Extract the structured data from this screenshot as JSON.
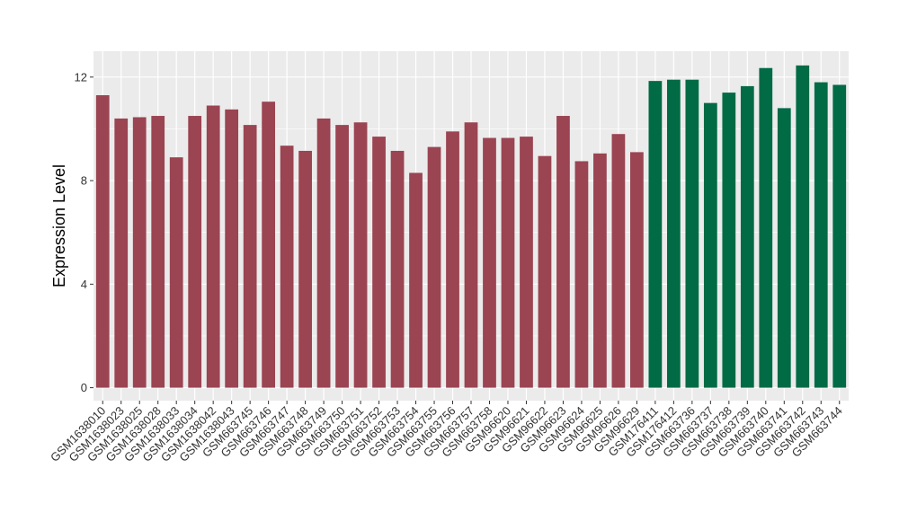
{
  "chart_data": {
    "type": "bar",
    "ylabel": "Expression Level",
    "xlabel": "",
    "title": "",
    "ylim": [
      -0.5,
      13.0
    ],
    "yticks": [
      0,
      4,
      8,
      12
    ],
    "grid": true,
    "legend": "none",
    "colors": {
      "group_a": "#9B4452",
      "group_b": "#006B45",
      "panel_bg": "#EBEBEB",
      "grid": "#FFFFFF"
    },
    "categories": [
      "GSM1638010",
      "GSM1638023",
      "GSM1638025",
      "GSM1638028",
      "GSM1638033",
      "GSM1638034",
      "GSM1638042",
      "GSM1638043",
      "GSM663745",
      "GSM663746",
      "GSM663747",
      "GSM663748",
      "GSM663749",
      "GSM663750",
      "GSM663751",
      "GSM663752",
      "GSM663753",
      "GSM663754",
      "GSM663755",
      "GSM663756",
      "GSM663757",
      "GSM663758",
      "GSM96620",
      "GSM96621",
      "GSM96622",
      "GSM96623",
      "GSM96624",
      "GSM96625",
      "GSM96626",
      "GSM96629",
      "GSM176411",
      "GSM176412",
      "GSM663736",
      "GSM663737",
      "GSM663738",
      "GSM663739",
      "GSM663740",
      "GSM663741",
      "GSM663742",
      "GSM663743",
      "GSM663744"
    ],
    "values": [
      11.3,
      10.4,
      10.45,
      10.5,
      8.9,
      10.5,
      10.9,
      10.75,
      10.15,
      11.05,
      9.35,
      9.15,
      10.4,
      10.15,
      10.25,
      9.7,
      9.15,
      8.3,
      9.3,
      9.9,
      10.25,
      9.65,
      9.65,
      9.7,
      8.95,
      10.5,
      8.75,
      9.05,
      9.8,
      9.1,
      11.85,
      11.9,
      11.9,
      11.0,
      11.4,
      11.65,
      12.35,
      10.8,
      12.45,
      11.8,
      11.7
    ],
    "groups": [
      "a",
      "a",
      "a",
      "a",
      "a",
      "a",
      "a",
      "a",
      "a",
      "a",
      "a",
      "a",
      "a",
      "a",
      "a",
      "a",
      "a",
      "a",
      "a",
      "a",
      "a",
      "a",
      "a",
      "a",
      "a",
      "a",
      "a",
      "a",
      "a",
      "a",
      "b",
      "b",
      "b",
      "b",
      "b",
      "b",
      "b",
      "b",
      "b",
      "b",
      "b"
    ]
  }
}
